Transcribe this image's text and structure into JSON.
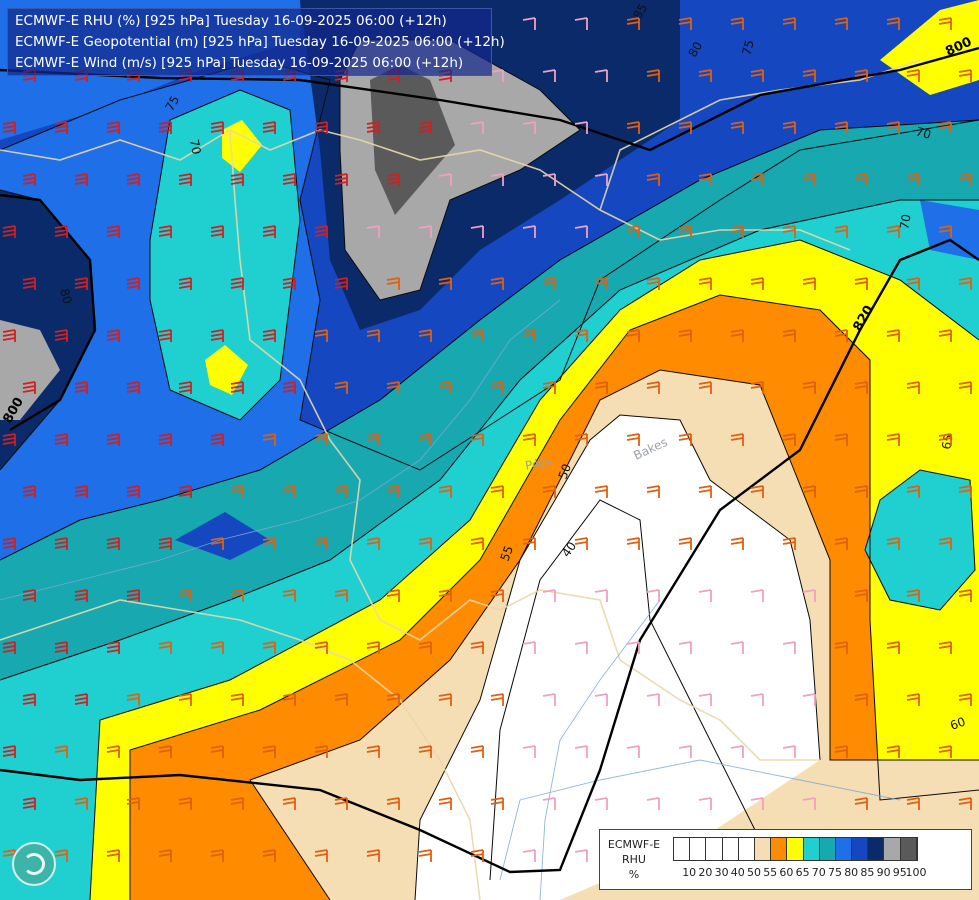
{
  "title_lines": [
    "ECMWF-E RHU (%) [925 hPa] Tuesday 16-09-2025 06:00 (+12h)",
    "ECMWF-E Geopotential (m) [925 hPa] Tuesday 16-09-2025 06:00 (+12h)",
    "ECMWF-E Wind (m/s) [925 hPa] Tuesday 16-09-2025 06:00 (+12h)"
  ],
  "legend": {
    "name_lines": [
      "ECMWF-E",
      "RHU",
      "%"
    ],
    "ticks": [
      "10",
      "20",
      "30",
      "40",
      "50",
      "55",
      "60",
      "65",
      "70",
      "75",
      "80",
      "85",
      "90",
      "95",
      "100"
    ],
    "colors": [
      "#ffffff",
      "#ffffff",
      "#ffffff",
      "#ffffff",
      "#ffffff",
      "#f5deb3",
      "#ff8c00",
      "#ffff00",
      "#20d0d0",
      "#18a8b0",
      "#1e6fe8",
      "#1447c0",
      "#0a2a6a",
      "#a8a8a8",
      "#5a5a5a"
    ]
  },
  "contour_labels": [
    "85",
    "80",
    "75",
    "75",
    "70",
    "70",
    "80",
    "70",
    "65",
    "60",
    "50",
    "40",
    "55"
  ],
  "geopotential_labels": [
    "800",
    "820",
    "800"
  ],
  "place_labels": [
    "Bakes",
    "Pécs"
  ],
  "colors": {
    "rhu_50_55": "#f5deb3",
    "rhu_55_60": "#ff8c00",
    "rhu_60_65": "#ffff00",
    "rhu_65_70": "#20d0d0",
    "rhu_70_75": "#18a8b0",
    "rhu_75_80": "#1e6fe8",
    "rhu_80_85": "#1447c0",
    "rhu_85_90": "#0a2a6a",
    "rhu_90_95": "#a8a8a8",
    "rhu_95_100": "#5a5a5a",
    "wind_barb_red": "#d02020",
    "wind_barb_orange": "#e06010",
    "wind_barb_pink": "#f0a0c0"
  },
  "logo_icon": "ecmwf-logo-icon"
}
